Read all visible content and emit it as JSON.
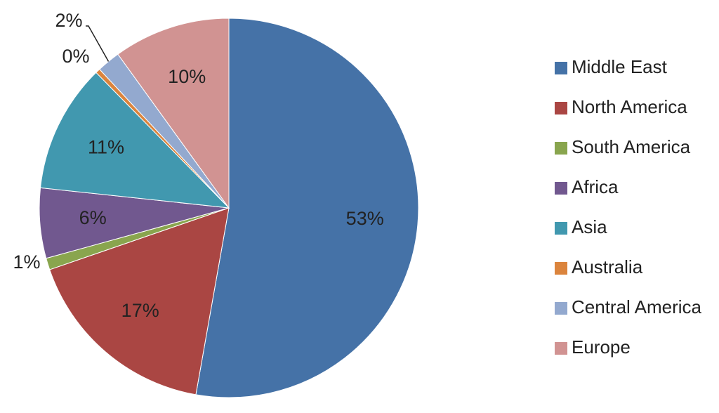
{
  "chart_data": {
    "type": "pie",
    "title": "",
    "legend_position": "right",
    "start_angle_deg": 0,
    "direction": "clockwise",
    "slices": [
      {
        "name": "Middle East",
        "value": 53,
        "label": "53%",
        "color": "#4572A7"
      },
      {
        "name": "North America",
        "value": 17,
        "label": "17%",
        "color": "#AA4643"
      },
      {
        "name": "South America",
        "value": 1,
        "label": "1%",
        "color": "#89A54E"
      },
      {
        "name": "Africa",
        "value": 6,
        "label": "6%",
        "color": "#71588F"
      },
      {
        "name": "Asia",
        "value": 11,
        "label": "11%",
        "color": "#4198AF"
      },
      {
        "name": "Australia",
        "value": 0.4,
        "label": "0%",
        "color": "#DB843D"
      },
      {
        "name": "Central America",
        "value": 2,
        "label": "2%",
        "color": "#93A9CF"
      },
      {
        "name": "Europe",
        "value": 10,
        "label": "10%",
        "color": "#D19392"
      }
    ]
  }
}
